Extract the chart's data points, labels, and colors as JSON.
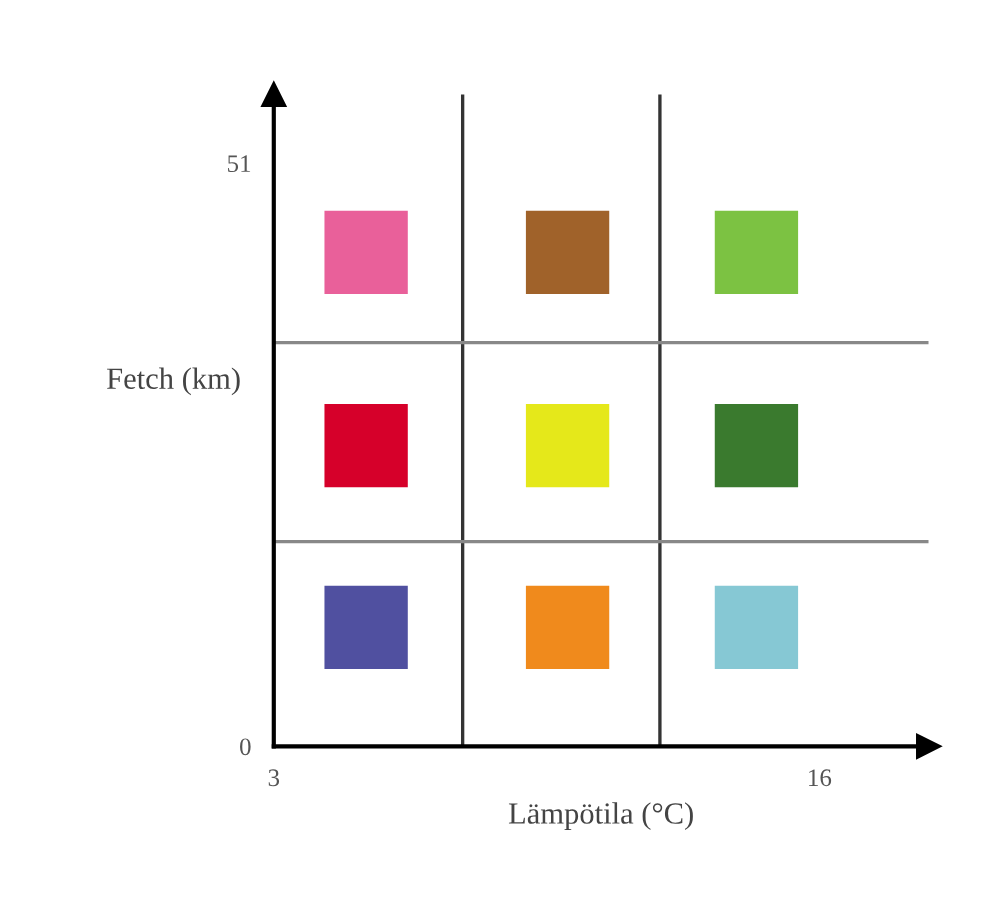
{
  "chart_data": {
    "type": "scatter",
    "xlabel": "Lämpötila (°C)",
    "ylabel": "Fetch (km)",
    "xlim": [
      3,
      18.6
    ],
    "ylim": [
      0,
      57
    ],
    "xticks": [
      3,
      16
    ],
    "yticks": [
      0,
      51
    ],
    "marker": "square",
    "grid": false,
    "legend": false,
    "series": [
      {
        "x": [
          5.2,
          10.0,
          14.5,
          5.2,
          10.0,
          14.5,
          5.2,
          10.0,
          14.5
        ],
        "values": [
          43.2,
          43.2,
          43.2,
          26.3,
          26.3,
          26.3,
          10.4,
          10.4,
          10.4
        ],
        "colors": [
          "#e9609a",
          "#a0622a",
          "#7cc242",
          "#d6002a",
          "#e5e81a",
          "#3a7a2e",
          "#5050a0",
          "#f08a1c",
          "#86c8d4"
        ]
      }
    ],
    "ref_lines": [
      {
        "axis": "x",
        "value": 7.5,
        "color": "#333333"
      },
      {
        "axis": "x",
        "value": 12.2,
        "color": "#333333"
      },
      {
        "axis": "y",
        "value": 35.3,
        "color": "#888888"
      },
      {
        "axis": "y",
        "value": 17.9,
        "color": "#888888"
      }
    ]
  }
}
